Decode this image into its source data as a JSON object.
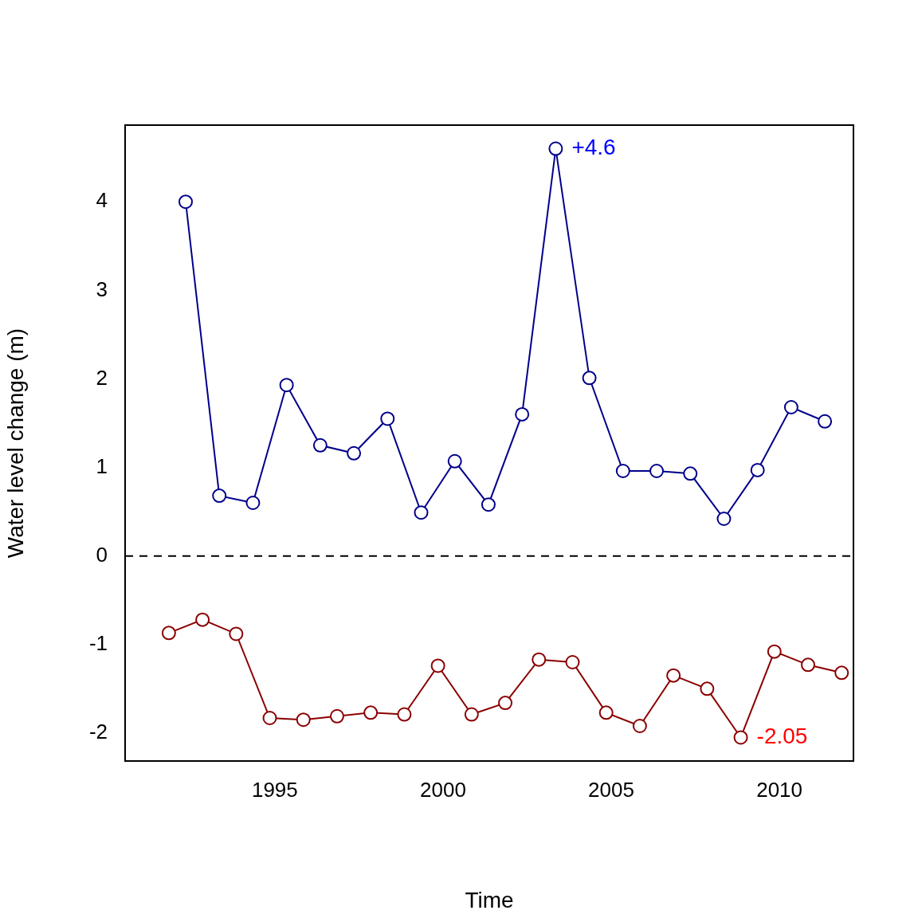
{
  "chart_data": {
    "type": "line",
    "x_label": "Time",
    "y_label": "Water level change (m)",
    "xlim": [
      1990.55,
      2012.2
    ],
    "xticks": [
      1995,
      2000,
      2005,
      2010
    ],
    "ylim": [
      -2.316,
      4.866
    ],
    "yticks": [
      -2,
      -1,
      0,
      1,
      2,
      3,
      4
    ],
    "grid": false,
    "marker": "open_circle",
    "series": [
      {
        "color": "#00008b",
        "line_style": "solid",
        "x": [
          1992.35,
          1993.35,
          1994.35,
          1995.35,
          1996.35,
          1997.35,
          1998.35,
          1999.35,
          2000.35,
          2001.35,
          2002.35,
          2003.35,
          2004.35,
          2005.35,
          2006.35,
          2007.35,
          2008.35,
          2009.35,
          2010.35,
          2011.35
        ],
        "values": [
          4.0,
          0.68,
          0.6,
          1.93,
          1.25,
          1.16,
          1.55,
          0.49,
          1.07,
          0.58,
          1.6,
          4.6,
          2.01,
          0.96,
          0.96,
          0.93,
          0.42,
          0.97,
          1.68,
          1.52
        ]
      },
      {
        "color": "#8b0000",
        "line_style": "solid",
        "x": [
          1991.85,
          1992.85,
          1993.85,
          1994.85,
          1995.85,
          1996.85,
          1997.85,
          1998.85,
          1999.85,
          2000.85,
          2001.85,
          2002.85,
          2003.85,
          2004.85,
          2005.85,
          2006.85,
          2007.85,
          2008.85,
          2009.85,
          2010.85,
          2011.85
        ],
        "values": [
          -0.87,
          -0.72,
          -0.88,
          -1.83,
          -1.85,
          -1.81,
          -1.77,
          -1.79,
          -1.24,
          -1.79,
          -1.66,
          -1.17,
          -1.2,
          -1.77,
          -1.92,
          -1.35,
          -1.5,
          -2.05,
          -1.08,
          -1.23,
          -1.32
        ]
      }
    ],
    "hlines": [
      {
        "value": 0,
        "line_style": "dashed"
      }
    ],
    "annotations": [
      {
        "text": "+4.6",
        "x": 2003.35,
        "y": 4.6,
        "color": "blue"
      },
      {
        "text": "-2.05",
        "x": 2008.85,
        "y": -2.05,
        "color": "red"
      }
    ]
  }
}
